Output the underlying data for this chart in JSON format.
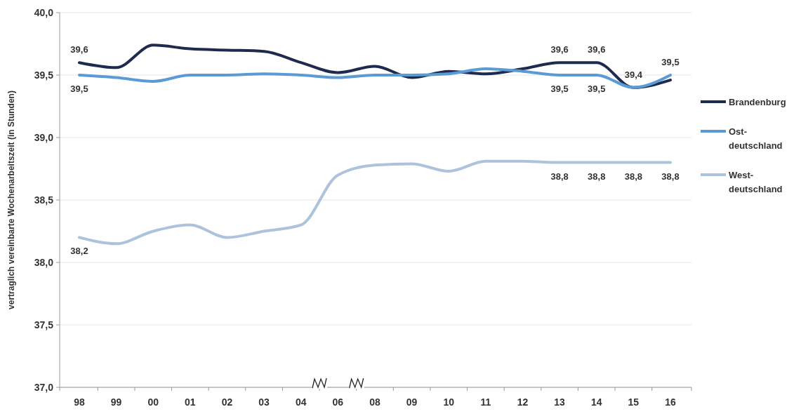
{
  "chart_data": {
    "type": "line",
    "ylabel": "vertraglich vereinbarte Wochenarbeitszeit  (in Stunden)",
    "categories": [
      "98",
      "99",
      "00",
      "01",
      "02",
      "03",
      "04",
      "06",
      "08",
      "09",
      "10",
      "11",
      "12",
      "13",
      "14",
      "15",
      "16"
    ],
    "series": [
      {
        "name": "Brandenburg",
        "color": "#1f2a4f",
        "values": [
          39.6,
          39.56,
          39.74,
          39.71,
          39.7,
          39.69,
          39.6,
          39.52,
          39.57,
          39.48,
          39.53,
          39.51,
          39.55,
          39.6,
          39.6,
          39.4,
          39.46
        ],
        "value_labels": [
          "39,6",
          null,
          null,
          null,
          null,
          null,
          null,
          null,
          null,
          null,
          null,
          null,
          null,
          "39,6",
          "39,6",
          "39,4",
          null
        ]
      },
      {
        "name": "Ost-deutschland",
        "color": "#5b9bd5",
        "values": [
          39.5,
          39.48,
          39.45,
          39.5,
          39.5,
          39.51,
          39.5,
          39.48,
          39.5,
          39.5,
          39.51,
          39.55,
          39.53,
          39.5,
          39.5,
          39.4,
          39.5
        ],
        "value_labels": [
          "39,5",
          null,
          null,
          null,
          null,
          null,
          null,
          null,
          null,
          null,
          null,
          null,
          null,
          "39,5",
          "39,5",
          null,
          "39,5"
        ]
      },
      {
        "name": "West-deutschland",
        "color": "#adc3dc",
        "values": [
          38.2,
          38.15,
          38.25,
          38.3,
          38.2,
          38.25,
          38.3,
          38.7,
          38.78,
          38.79,
          38.73,
          38.81,
          38.81,
          38.8,
          38.8,
          38.8,
          38.8
        ],
        "value_labels": [
          "38,2",
          null,
          null,
          null,
          null,
          null,
          null,
          null,
          null,
          null,
          null,
          null,
          null,
          "38,8",
          "38,8",
          "38,8",
          "38,8"
        ]
      }
    ],
    "ylim": [
      37,
      40
    ],
    "yticks": [
      {
        "value": 37,
        "label": "37,0"
      },
      {
        "value": 37.5,
        "label": "37,5"
      },
      {
        "value": 38,
        "label": "38,0"
      },
      {
        "value": 38.5,
        "label": "38,5"
      },
      {
        "value": 39,
        "label": "39,0"
      },
      {
        "value": 39.5,
        "label": "39,5"
      },
      {
        "value": 40,
        "label": "40,0"
      }
    ],
    "grid": "y",
    "legend": "right",
    "marker": "none",
    "line_style": "solid"
  }
}
